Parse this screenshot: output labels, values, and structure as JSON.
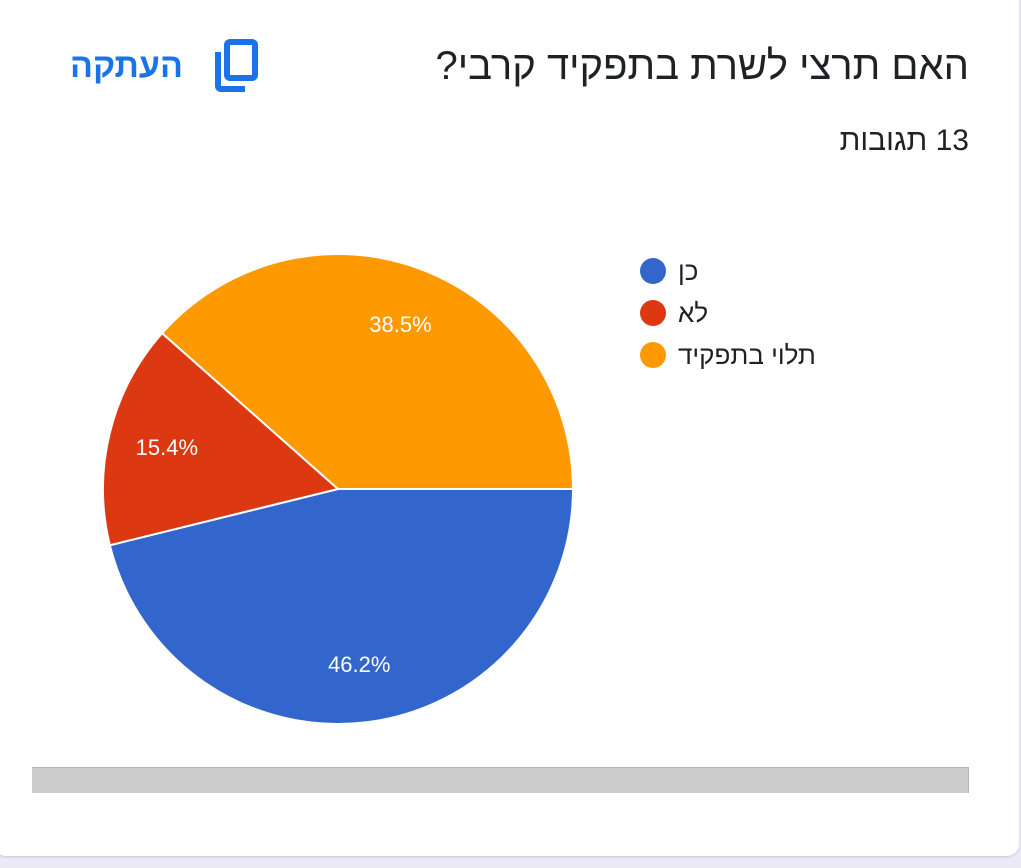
{
  "question": {
    "title": "האם תרצי לשרת בתפקיד קרבי?",
    "responses": "13 תגובות"
  },
  "copy_button": {
    "label": "העתקה",
    "icon": "copy-icon"
  },
  "colors": {
    "accent": "#1a73e8",
    "blue": "#3366cc",
    "red": "#dc3912",
    "orange": "#ff9900"
  },
  "chart_data": {
    "type": "pie",
    "title": "האם תרצי לשרת בתפקיד קרבי?",
    "subtitle": "13 תגובות",
    "categories": [
      "כן",
      "לא",
      "תלוי בתפקיד"
    ],
    "values": [
      46.2,
      15.4,
      38.5
    ],
    "counts": [
      6,
      2,
      5
    ],
    "labels": [
      "46.2%",
      "15.4%",
      "38.5%"
    ],
    "colors": [
      "#3366cc",
      "#dc3912",
      "#ff9900"
    ],
    "legend_position": "right"
  },
  "legend": [
    {
      "label": "כן",
      "color": "#3366cc"
    },
    {
      "label": "לא",
      "color": "#dc3912"
    },
    {
      "label": "תלוי בתפקיד",
      "color": "#ff9900"
    }
  ]
}
